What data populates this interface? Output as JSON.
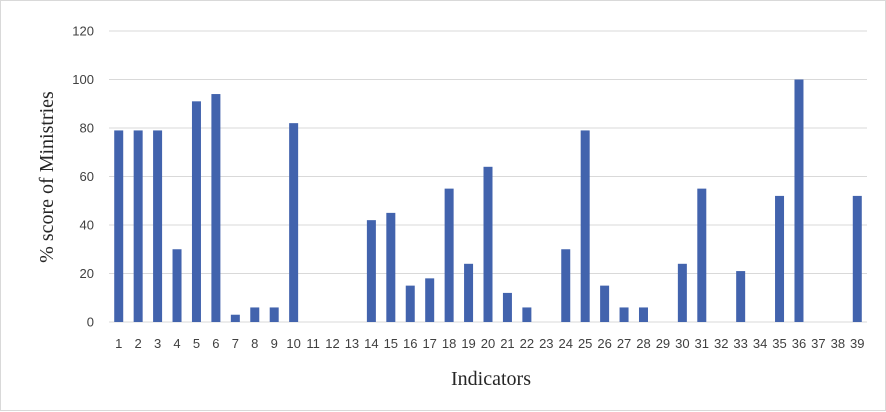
{
  "chart_data": {
    "type": "bar",
    "title": "",
    "xlabel": "Indicators",
    "ylabel": "% score of Ministries",
    "ylim": [
      0,
      120
    ],
    "yticks": [
      0,
      20,
      40,
      60,
      80,
      100,
      120
    ],
    "grid": true,
    "legend": "none",
    "bar_color": "#4263ad",
    "categories": [
      "1",
      "2",
      "3",
      "4",
      "5",
      "6",
      "7",
      "8",
      "9",
      "10",
      "11",
      "12",
      "13",
      "14",
      "15",
      "16",
      "17",
      "18",
      "19",
      "20",
      "21",
      "22",
      "23",
      "24",
      "25",
      "26",
      "27",
      "28",
      "29",
      "30",
      "31",
      "32",
      "33",
      "34",
      "35",
      "36",
      "37",
      "38",
      "39"
    ],
    "values": [
      79,
      79,
      79,
      30,
      91,
      94,
      3,
      6,
      6,
      82,
      0,
      0,
      0,
      42,
      45,
      15,
      18,
      55,
      24,
      64,
      12,
      6,
      0,
      30,
      79,
      15,
      6,
      6,
      0,
      24,
      55,
      0,
      21,
      0,
      52,
      100,
      0,
      0,
      52
    ]
  }
}
